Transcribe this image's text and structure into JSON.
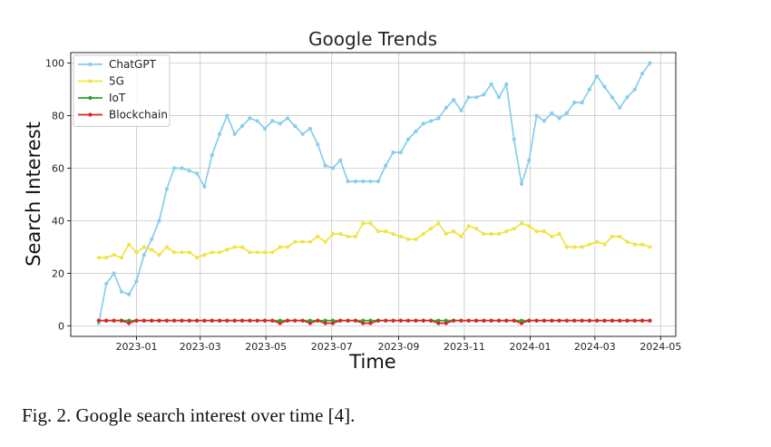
{
  "caption": "Fig. 2.  Google search interest over time [4].",
  "chart_data": {
    "type": "line",
    "title": "Google Trends",
    "xlabel": "Time",
    "ylabel": "Search Interest",
    "xlim": [
      "2022-11-01",
      "2024-05-15"
    ],
    "ylim": [
      -4,
      104
    ],
    "y_ticks": [
      0,
      20,
      40,
      60,
      80,
      100
    ],
    "x_ticks": [
      {
        "date": "2023-01-01",
        "label": "2023-01"
      },
      {
        "date": "2023-03-01",
        "label": "2023-03"
      },
      {
        "date": "2023-05-01",
        "label": "2023-05"
      },
      {
        "date": "2023-07-01",
        "label": "2023-07"
      },
      {
        "date": "2023-09-01",
        "label": "2023-09"
      },
      {
        "date": "2023-11-01",
        "label": "2023-11"
      },
      {
        "date": "2024-01-01",
        "label": "2024-01"
      },
      {
        "date": "2024-03-01",
        "label": "2024-03"
      },
      {
        "date": "2024-05-01",
        "label": "2024-05"
      }
    ],
    "grid": true,
    "legend_position": "top-left",
    "x": [
      "2022-11-27",
      "2022-12-04",
      "2022-12-11",
      "2022-12-18",
      "2022-12-25",
      "2023-01-01",
      "2023-01-08",
      "2023-01-15",
      "2023-01-22",
      "2023-01-29",
      "2023-02-05",
      "2023-02-12",
      "2023-02-19",
      "2023-02-26",
      "2023-03-05",
      "2023-03-12",
      "2023-03-19",
      "2023-03-26",
      "2023-04-02",
      "2023-04-09",
      "2023-04-16",
      "2023-04-23",
      "2023-04-30",
      "2023-05-07",
      "2023-05-14",
      "2023-05-21",
      "2023-05-28",
      "2023-06-04",
      "2023-06-11",
      "2023-06-18",
      "2023-06-25",
      "2023-07-02",
      "2023-07-09",
      "2023-07-16",
      "2023-07-23",
      "2023-07-30",
      "2023-08-06",
      "2023-08-13",
      "2023-08-20",
      "2023-08-27",
      "2023-09-03",
      "2023-09-10",
      "2023-09-17",
      "2023-09-24",
      "2023-10-01",
      "2023-10-08",
      "2023-10-15",
      "2023-10-22",
      "2023-10-29",
      "2023-11-05",
      "2023-11-12",
      "2023-11-19",
      "2023-11-26",
      "2023-12-03",
      "2023-12-10",
      "2023-12-17",
      "2023-12-24",
      "2023-12-31",
      "2024-01-07",
      "2024-01-14",
      "2024-01-21",
      "2024-01-28",
      "2024-02-04",
      "2024-02-11",
      "2024-02-18",
      "2024-02-25",
      "2024-03-03",
      "2024-03-10",
      "2024-03-17",
      "2024-03-24",
      "2024-03-31",
      "2024-04-07",
      "2024-04-14",
      "2024-04-21"
    ],
    "series": [
      {
        "name": "ChatGPT",
        "color": "#87CEEB",
        "values": [
          1,
          16,
          20,
          13,
          12,
          17,
          27,
          33,
          40,
          52,
          60,
          60,
          59,
          58,
          53,
          65,
          73,
          80,
          73,
          76,
          79,
          78,
          75,
          78,
          77,
          79,
          76,
          73,
          75,
          69,
          61,
          60,
          63,
          55,
          55,
          55,
          55,
          55,
          61,
          66,
          66,
          71,
          74,
          77,
          78,
          79,
          83,
          86,
          82,
          87,
          87,
          88,
          92,
          87,
          92,
          71,
          54,
          63,
          80,
          78,
          81,
          79,
          81,
          85,
          85,
          90,
          95,
          91,
          87,
          83,
          87,
          90,
          96,
          100
        ]
      },
      {
        "name": "5G",
        "color": "#F0E442",
        "values": [
          26,
          26,
          27,
          26,
          31,
          28,
          30,
          29,
          27,
          30,
          28,
          28,
          28,
          26,
          27,
          28,
          28,
          29,
          30,
          30,
          28,
          28,
          28,
          28,
          30,
          30,
          32,
          32,
          32,
          34,
          32,
          35,
          35,
          34,
          34,
          39,
          39,
          36,
          36,
          35,
          34,
          33,
          33,
          35,
          37,
          39,
          35,
          36,
          34,
          38,
          37,
          35,
          35,
          35,
          36,
          37,
          39,
          38,
          36,
          36,
          34,
          35,
          30,
          30,
          30,
          31,
          32,
          31,
          34,
          34,
          32,
          31,
          31,
          30
        ]
      },
      {
        "name": "IoT",
        "color": "#2CA02C",
        "values": [
          2,
          2,
          2,
          2,
          2,
          2,
          2,
          2,
          2,
          2,
          2,
          2,
          2,
          2,
          2,
          2,
          2,
          2,
          2,
          2,
          2,
          2,
          2,
          2,
          2,
          2,
          2,
          2,
          2,
          2,
          2,
          2,
          2,
          2,
          2,
          2,
          2,
          2,
          2,
          2,
          2,
          2,
          2,
          2,
          2,
          2,
          2,
          2,
          2,
          2,
          2,
          2,
          2,
          2,
          2,
          2,
          2,
          2,
          2,
          2,
          2,
          2,
          2,
          2,
          2,
          2,
          2,
          2,
          2,
          2,
          2,
          2,
          2,
          2
        ]
      },
      {
        "name": "Blockchain",
        "color": "#D62728",
        "values": [
          2,
          2,
          2,
          2,
          1,
          2,
          2,
          2,
          2,
          2,
          2,
          2,
          2,
          2,
          2,
          2,
          2,
          2,
          2,
          2,
          2,
          2,
          2,
          2,
          1,
          2,
          2,
          2,
          1,
          2,
          1,
          1,
          2,
          2,
          2,
          1,
          1,
          2,
          2,
          2,
          2,
          2,
          2,
          2,
          2,
          1,
          1,
          2,
          2,
          2,
          2,
          2,
          2,
          2,
          2,
          2,
          1,
          2,
          2,
          2,
          2,
          2,
          2,
          2,
          2,
          2,
          2,
          2,
          2,
          2,
          2,
          2,
          2,
          2
        ]
      }
    ]
  }
}
